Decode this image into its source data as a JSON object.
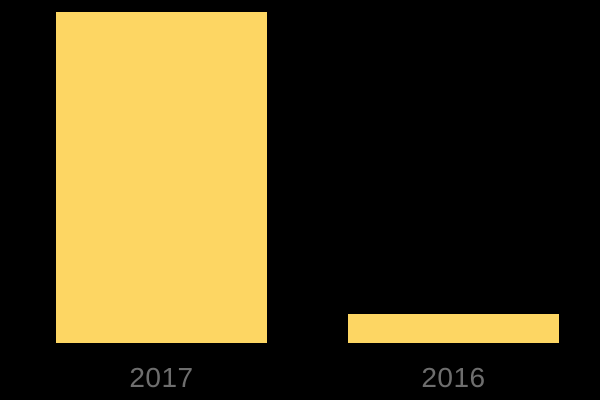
{
  "chart": {
    "background_color": "#000000",
    "bar_color": "#FDD663",
    "label_color": "#6E6E6E"
  },
  "chart_data": {
    "type": "bar",
    "categories": [
      "2017",
      "2016"
    ],
    "values": [
      100,
      8.8
    ],
    "title": "",
    "xlabel": "",
    "ylabel": "",
    "ylim": [
      0,
      100
    ],
    "grid": false,
    "legend": false,
    "axes_visible": false,
    "value_labels_visible": false,
    "note": "No axis scale shown in image; values normalized so 2017 = 100 (bar pixel heights 331 vs 29)"
  }
}
